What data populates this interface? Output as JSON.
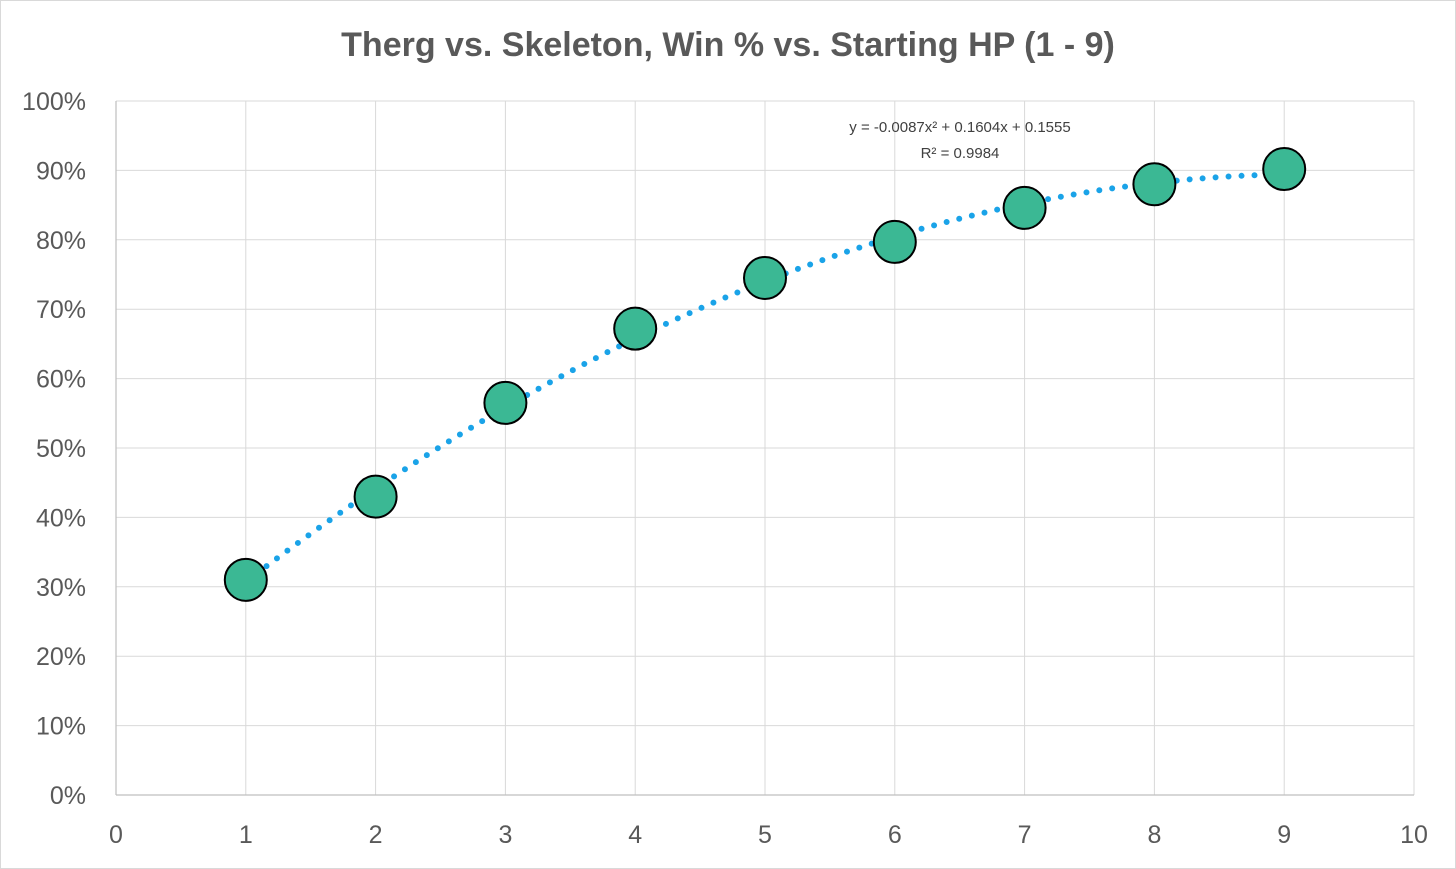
{
  "chart_data": {
    "type": "scatter",
    "title": "Therg vs. Skeleton, Win % vs. Starting HP (1 - 9)",
    "xlabel": "",
    "ylabel": "",
    "xlim": [
      0,
      10
    ],
    "ylim": [
      0,
      1
    ],
    "x_ticks": [
      "0",
      "1",
      "2",
      "3",
      "4",
      "5",
      "6",
      "7",
      "8",
      "9",
      "10"
    ],
    "y_ticks": [
      "0%",
      "10%",
      "20%",
      "30%",
      "40%",
      "50%",
      "60%",
      "70%",
      "80%",
      "90%",
      "100%"
    ],
    "grid": true,
    "legend": "none",
    "series": [
      {
        "x": [
          1,
          2,
          3,
          4,
          5,
          6,
          7,
          8,
          9
        ],
        "y": [
          0.31,
          0.43,
          0.565,
          0.672,
          0.745,
          0.797,
          0.846,
          0.88,
          0.902
        ],
        "marker_color": "#3bb894",
        "marker_edge": "#000000"
      }
    ],
    "trendline": {
      "type": "polynomial",
      "order": 2,
      "coefficients": [
        -0.0087,
        0.1604,
        0.1555
      ],
      "x_range": [
        1,
        9
      ],
      "style": "dotted",
      "color": "#1aa3e8",
      "equation_label": "y = -0.0087x² + 0.1604x + 0.1555",
      "r2_label": "R² = 0.9984"
    },
    "colors": {
      "gridline": "#d9d9d9",
      "axis": "#bfbfbf",
      "text": "#595959"
    }
  }
}
